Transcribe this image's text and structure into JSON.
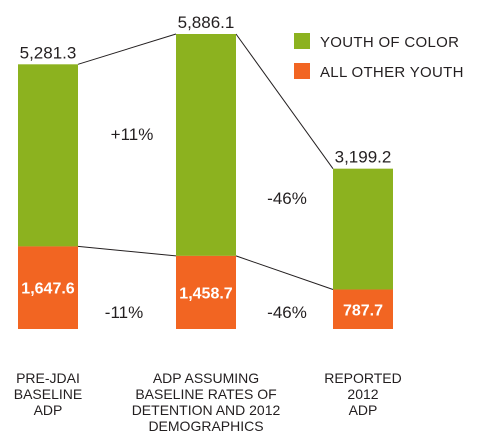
{
  "chart_data": {
    "type": "bar",
    "stacked": true,
    "categories": [
      "PRE-JDAI BASELINE ADP",
      "ADP ASSUMING BASELINE RATES OF DETENTION AND 2012 DEMOGRAPHICS",
      "REPORTED 2012 ADP"
    ],
    "category_lines": [
      [
        "PRE-JDAI",
        "BASELINE",
        "ADP"
      ],
      [
        "ADP ASSUMING",
        "BASELINE RATES OF",
        "DETENTION AND 2012",
        "DEMOGRAPHICS"
      ],
      [
        "REPORTED",
        "2012",
        "ADP"
      ]
    ],
    "series": [
      {
        "name": "ALL OTHER YOUTH",
        "color": "#f26522",
        "values": [
          1647.6,
          1458.7,
          787.7
        ],
        "labels": [
          "1,647.6",
          "1,458.7",
          "787.7"
        ]
      },
      {
        "name": "YOUTH OF COLOR",
        "color": "#8cb21f",
        "values": [
          3633.7,
          4427.4,
          2411.5
        ]
      }
    ],
    "totals": [
      5281.3,
      5886.1,
      3199.2
    ],
    "total_labels": [
      "5,281.3",
      "5,886.1",
      "3,199.2"
    ],
    "changes_total": [
      "+11%",
      "-46%"
    ],
    "changes_other": [
      "-11%",
      "-46%"
    ],
    "legend": [
      {
        "label": "YOUTH OF COLOR",
        "color": "#8cb21f"
      },
      {
        "label": "ALL OTHER YOUTH",
        "color": "#f26522"
      }
    ],
    "legend_position": "top-right",
    "grid": false
  }
}
